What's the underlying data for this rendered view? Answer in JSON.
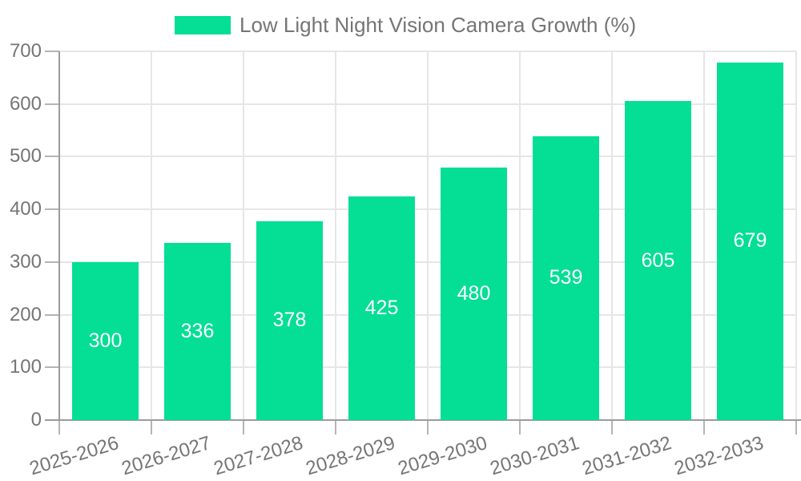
{
  "legend": {
    "label": "Low Light Night Vision Camera Growth (%)"
  },
  "chart_data": {
    "type": "bar",
    "title": "Low Light Night Vision Camera Growth (%)",
    "categories": [
      "2025-2026",
      "2026-2027",
      "2027-2028",
      "2028-2029",
      "2029-2030",
      "2030-2031",
      "2031-2032",
      "2032-2033"
    ],
    "values": [
      300,
      336,
      378,
      425,
      480,
      539,
      605,
      679
    ],
    "xlabel": "",
    "ylabel": "",
    "ylim": [
      0,
      700
    ],
    "yticks": [
      0,
      100,
      200,
      300,
      400,
      500,
      600,
      700
    ],
    "grid": true,
    "legend_position": "top",
    "colors": {
      "bar": "#05de95",
      "value_label": "#ffffff",
      "axis_text": "#757575",
      "legend_text": "#757575",
      "grid_line": "#e6e6e6",
      "axis_line": "#9c9c9c",
      "tick_mark": "#b5b5b5",
      "background": "#ffffff"
    }
  }
}
